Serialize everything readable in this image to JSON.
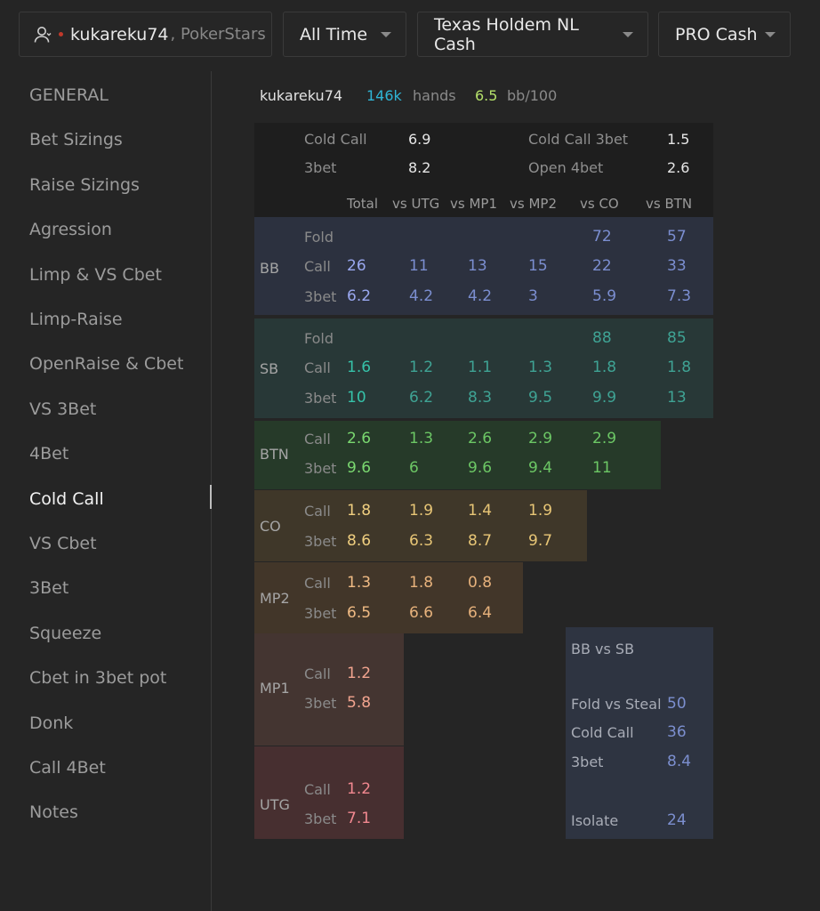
{
  "topbar": {
    "player": "kukareku74",
    "site": ", PokerStars",
    "time_filter": "All Time",
    "game_filter": "Texas Holdem NL Cash",
    "stake_filter": "PRO Cash"
  },
  "sidebar": {
    "items": [
      "GENERAL",
      "Bet Sizings",
      "Raise Sizings",
      "Agression",
      "Limp & VS Cbet",
      "Limp-Raise",
      "OpenRaise & Cbet",
      "VS 3Bet",
      "4Bet",
      "Cold Call",
      "VS Cbet",
      "3Bet",
      "Squeeze",
      "Cbet in 3bet pot",
      "Donk",
      "Call 4Bet",
      "Notes"
    ],
    "active": "Cold Call"
  },
  "header": {
    "name": "kukareku74",
    "hands": "146k",
    "hands_label": "hands",
    "winrate": "6.5",
    "winrate_label": "bb/100"
  },
  "summary": {
    "cold_call_label": "Cold Call",
    "cold_call": "6.9",
    "threebet_label": "3bet",
    "threebet": "8.2",
    "cold_call_3bet_label": "Cold Call 3bet",
    "cold_call_3bet": "1.5",
    "open_4bet_label": "Open 4bet",
    "open_4bet": "2.6"
  },
  "columns": [
    "Total",
    "vs UTG",
    "vs MP1",
    "vs MP2",
    "vs CO",
    "vs BTN"
  ],
  "positions": [
    {
      "pos": "BB",
      "bg": "#2c313f",
      "color": "#7b8ed0",
      "total_color": "#9aa8f0",
      "rows": [
        {
          "action": "Fold",
          "vals": [
            "",
            "",
            "",
            "",
            "72",
            "57"
          ]
        },
        {
          "action": "Call",
          "vals": [
            "26",
            "11",
            "13",
            "15",
            "22",
            "33"
          ]
        },
        {
          "action": "3bet",
          "vals": [
            "6.2",
            "4.2",
            "4.2",
            "3",
            "5.9",
            "7.3"
          ]
        }
      ]
    },
    {
      "pos": "SB",
      "bg": "#283837",
      "color": "#3fa394",
      "total_color": "#36c2a9",
      "rows": [
        {
          "action": "Fold",
          "vals": [
            "",
            "",
            "",
            "",
            "88",
            "85"
          ]
        },
        {
          "action": "Call",
          "vals": [
            "1.6",
            "1.2",
            "1.1",
            "1.3",
            "1.8",
            "1.8"
          ]
        },
        {
          "action": "3bet",
          "vals": [
            "10",
            "6.2",
            "8.3",
            "9.5",
            "9.9",
            "13"
          ]
        }
      ]
    },
    {
      "pos": "BTN",
      "bg": "#263a29",
      "color": "#6cc765",
      "total_color": "#7ad870",
      "rows": [
        {
          "action": "Call",
          "vals": [
            "2.6",
            "1.3",
            "2.6",
            "2.9",
            "2.9"
          ]
        },
        {
          "action": "3bet",
          "vals": [
            "9.6",
            "6",
            "9.6",
            "9.4",
            "11"
          ]
        }
      ]
    },
    {
      "pos": "CO",
      "bg": "#3f3729",
      "color": "#e8c676",
      "total_color": "#f0cf80",
      "rows": [
        {
          "action": "Call",
          "vals": [
            "1.8",
            "1.9",
            "1.4",
            "1.9"
          ]
        },
        {
          "action": "3bet",
          "vals": [
            "8.6",
            "6.3",
            "8.7",
            "9.7"
          ]
        }
      ]
    },
    {
      "pos": "MP2",
      "bg": "#423629",
      "color": "#e7b27c",
      "total_color": "#f0bb84",
      "rows": [
        {
          "action": "Call",
          "vals": [
            "1.3",
            "1.8",
            "0.8"
          ]
        },
        {
          "action": "3bet",
          "vals": [
            "6.5",
            "6.6",
            "6.4"
          ]
        }
      ]
    },
    {
      "pos": "MP1",
      "bg": "#443531",
      "color": "#e89a85",
      "total_color": "#f2a48f",
      "rows": [
        {
          "action": "Call",
          "vals": [
            "1.2"
          ]
        },
        {
          "action": "3bet",
          "vals": [
            "5.8"
          ]
        }
      ]
    },
    {
      "pos": "UTG",
      "bg": "#472f30",
      "color": "#e87e86",
      "total_color": "#f28890",
      "rows": [
        {
          "action": "Call",
          "vals": [
            "1.2"
          ]
        },
        {
          "action": "3bet",
          "vals": [
            "7.1"
          ]
        }
      ]
    }
  ],
  "bb_vs_sb": {
    "title": "BB vs SB",
    "items": [
      {
        "label": "Fold vs Steal",
        "value": "50"
      },
      {
        "label": "Cold Call",
        "value": "36"
      },
      {
        "label": "3bet",
        "value": "8.4"
      },
      {
        "label": "Isolate",
        "value": "24"
      }
    ]
  }
}
